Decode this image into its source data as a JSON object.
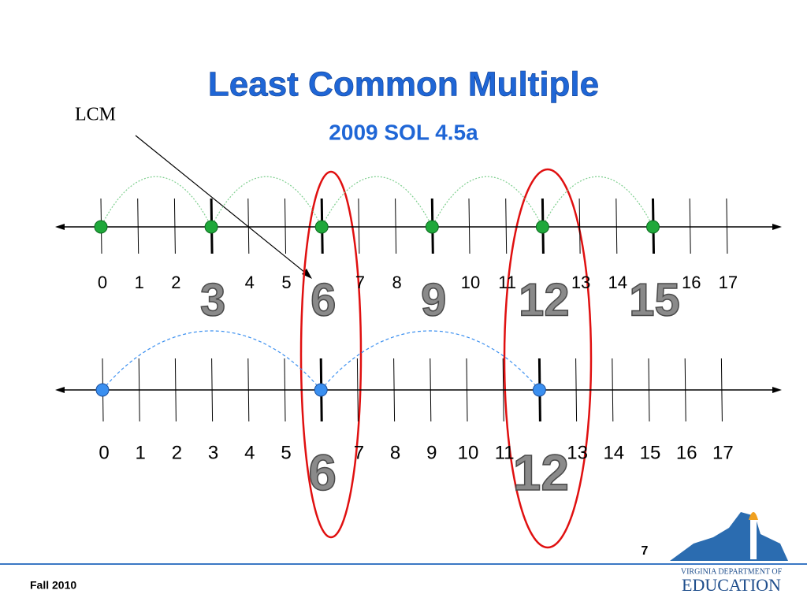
{
  "title": "Least Common Multiple",
  "subtitle": "2009 SOL 4.5a",
  "lcm_label": "LCM",
  "top_line": {
    "labels": [
      0,
      1,
      2,
      null,
      4,
      5,
      null,
      7,
      8,
      null,
      10,
      11,
      null,
      13,
      14,
      null,
      16,
      17
    ],
    "multiples": [
      3,
      6,
      9,
      12,
      15
    ]
  },
  "bottom_line": {
    "labels": [
      0,
      1,
      2,
      3,
      4,
      5,
      null,
      7,
      8,
      9,
      10,
      11,
      null,
      13,
      14,
      15,
      16,
      17
    ],
    "multiples": [
      6,
      12
    ]
  },
  "page_number": "7",
  "footer": "Fall 2010",
  "logo": {
    "line1": "Virginia Department of",
    "line2": "Education"
  }
}
